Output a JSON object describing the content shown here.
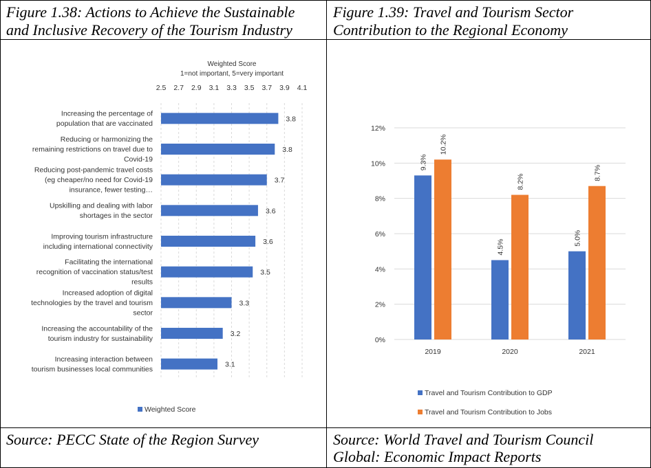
{
  "figures": [
    {
      "caption_line1": "Figure 1.38: Actions to Achieve the Sustainable",
      "caption_line2": "and Inclusive Recovery of the Tourism Industry",
      "source": "Source: PECC State of the Region Survey"
    },
    {
      "caption_line1": "Figure 1.39: Travel and Tourism Sector",
      "caption_line2": "Contribution to the Regional Economy",
      "source_line1": "Source: World Travel and Tourism Council",
      "source_line2": "Global: Economic Impact Reports"
    }
  ],
  "colors": {
    "blue": "#4472C4",
    "orange": "#ED7D31",
    "grid": "#D9D9D9",
    "text": "#404040"
  },
  "chart_data": [
    {
      "type": "bar",
      "orientation": "horizontal",
      "axis_title_line1": "Weighted Score",
      "axis_title_line2": "1=not important, 5=very important",
      "xlim": [
        2.5,
        4.1
      ],
      "ticks": [
        "2.5",
        "2.7",
        "2.9",
        "3.1",
        "3.3",
        "3.5",
        "3.7",
        "3.9",
        "4.1"
      ],
      "axis_position": "top",
      "legend_placement": "bottom-left",
      "grid": true,
      "categories": [
        [
          "Increasing the percentage of",
          "population that are vaccinated"
        ],
        [
          "Reducing or harmonizing the",
          "remaining restrictions on travel due to",
          "Covid-19"
        ],
        [
          "Reducing post-pandemic travel costs",
          "(eg cheaper/no need for Covid-19",
          "insurance, fewer testing…"
        ],
        [
          "Upskilling and dealing with labor",
          "shortages in the sector"
        ],
        [
          "Improving tourism infrastructure",
          "including international connectivity"
        ],
        [
          "Facilitating the international",
          "recognition of vaccination status/test",
          "results"
        ],
        [
          "Increased adoption of digital",
          "technologies by the travel and tourism",
          "sector"
        ],
        [
          "Increasing the accountability of the",
          "tourism industry for sustainability"
        ],
        [
          "Increasing interaction between",
          "tourism businesses local communities"
        ]
      ],
      "values": [
        3.83,
        3.79,
        3.7,
        3.6,
        3.57,
        3.54,
        3.3,
        3.2,
        3.14
      ],
      "data_labels": [
        "3.8",
        "3.8",
        "3.7",
        "3.6",
        "3.6",
        "3.5",
        "3.3",
        "3.2",
        "3.1"
      ],
      "series": [
        {
          "name": "Weighted Score"
        }
      ]
    },
    {
      "type": "bar",
      "orientation": "vertical",
      "categories": [
        "2019",
        "2020",
        "2021"
      ],
      "ylim": [
        0,
        12
      ],
      "yticks": [
        "0%",
        "2%",
        "4%",
        "6%",
        "8%",
        "10%",
        "12%"
      ],
      "grid": true,
      "legend_placement": "bottom",
      "series": [
        {
          "name": "Travel and Tourism Contribution to GDP",
          "values": [
            9.3,
            4.5,
            5.0
          ],
          "labels": [
            "9.3%",
            "4.5%",
            "5.0%"
          ]
        },
        {
          "name": "Travel and Tourism Contribution to Jobs",
          "values": [
            10.2,
            8.2,
            8.7
          ],
          "labels": [
            "10.2%",
            "8.2%",
            "8.7%"
          ]
        }
      ]
    }
  ]
}
